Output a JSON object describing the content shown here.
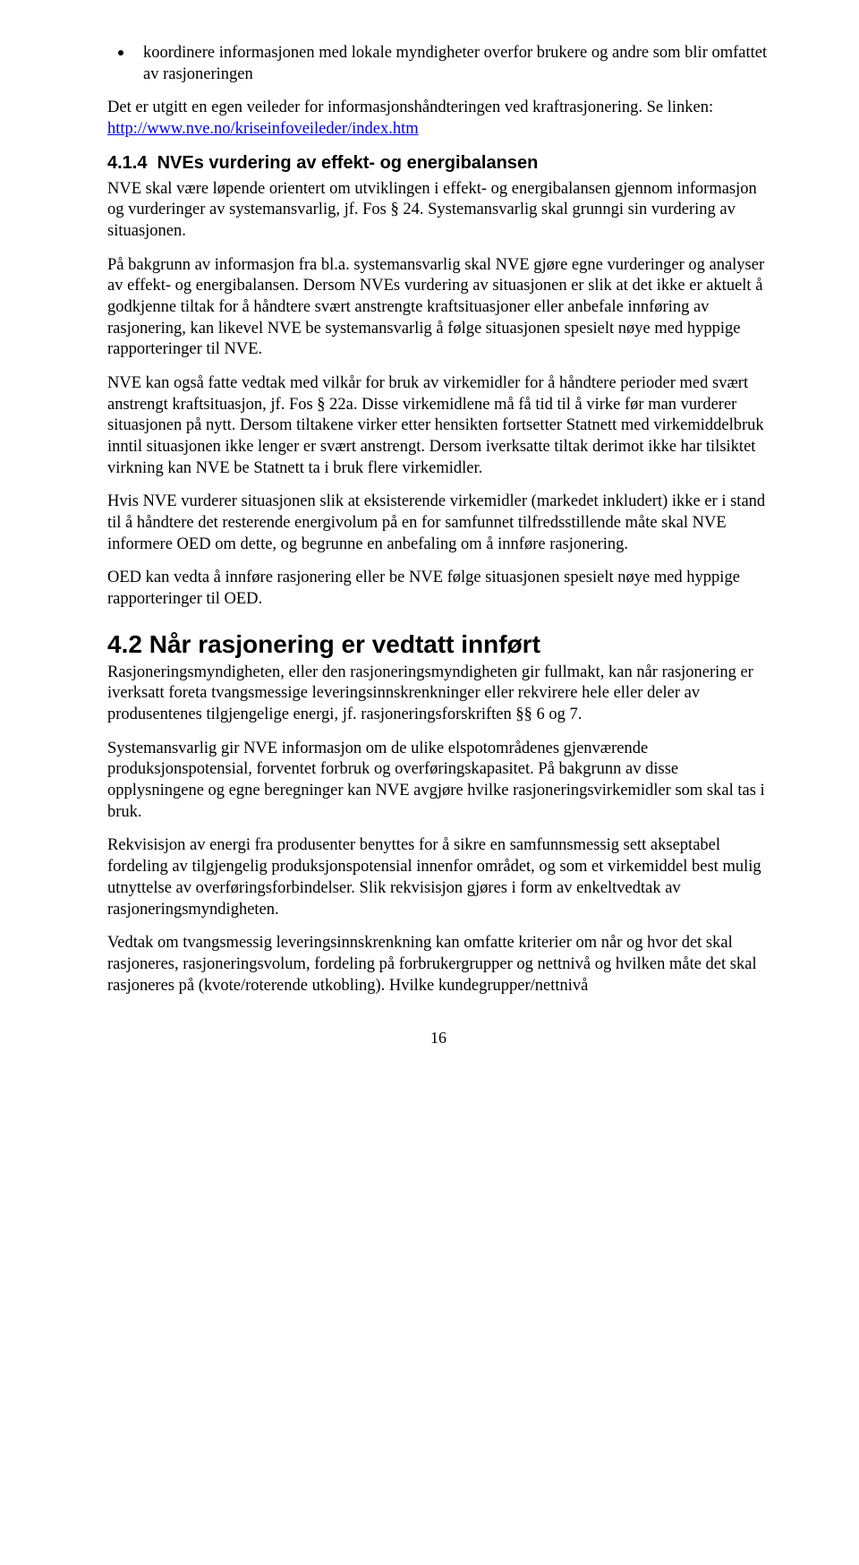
{
  "bullet1": "koordinere informasjonen med lokale myndigheter overfor brukere og andre som blir omfattet av rasjoneringen",
  "intro_before_link": "Det er utgitt en egen veileder for informasjonshåndteringen ved kraftrasjonering. Se linken: ",
  "link_text": "http://www.nve.no/kriseinfoveileder/index.htm",
  "h3_num": "4.1.4",
  "h3_title": "NVEs vurdering av effekt- og energibalansen",
  "p1": "NVE skal være løpende orientert om utviklingen i effekt- og energibalansen gjennom informasjon og vurderinger av systemansvarlig, jf. Fos § 24. Systemansvarlig skal grunngi sin vurdering av situasjonen.",
  "p2": "På bakgrunn av informasjon fra bl.a. systemansvarlig skal NVE gjøre egne vurderinger og analyser av effekt- og energibalansen. Dersom NVEs vurdering av situasjonen er slik at det ikke er aktuelt å godkjenne tiltak for å håndtere svært anstrengte kraftsituasjoner eller anbefale innføring av rasjonering, kan likevel NVE be systemansvarlig å følge situasjonen spesielt nøye med hyppige rapporteringer til NVE.",
  "p3": "NVE kan også fatte vedtak med vilkår for bruk av virkemidler for å håndtere perioder med svært anstrengt kraftsituasjon, jf. Fos § 22a. Disse virkemidlene må få tid til å virke før man vurderer situasjonen på nytt. Dersom tiltakene virker etter hensikten fortsetter Statnett med virkemiddelbruk inntil situasjonen ikke lenger er svært anstrengt. Dersom iverksatte tiltak derimot ikke har tilsiktet virkning kan NVE be Statnett ta i bruk flere virkemidler.",
  "p4": "Hvis NVE vurderer situasjonen slik at eksisterende virkemidler (markedet inkludert) ikke er i stand til å håndtere det resterende energivolum på en for samfunnet tilfredsstillende måte skal NVE informere OED om dette, og begrunne en anbefaling om å innføre rasjonering.",
  "p5": "OED kan vedta å innføre rasjonering eller be NVE følge situasjonen spesielt nøye med hyppige rapporteringer til OED.",
  "h2_num": "4.2",
  "h2_title": "Når rasjonering er vedtatt innført",
  "p6": "Rasjoneringsmyndigheten, eller den rasjoneringsmyndigheten gir fullmakt, kan når rasjonering er iverksatt foreta tvangsmessige leveringsinnskrenkninger eller rekvirere hele eller deler av produsentenes tilgjengelige energi, jf. rasjoneringsforskriften §§ 6 og 7.",
  "p7": "Systemansvarlig gir NVE informasjon om de ulike elspotområdenes gjenværende produksjonspotensial, forventet forbruk og overføringskapasitet. På bakgrunn av disse opplysningene og egne beregninger kan NVE avgjøre hvilke rasjoneringsvirkemidler som skal tas i bruk.",
  "p8": "Rekvisisjon av energi fra produsenter benyttes for å sikre en samfunnsmessig sett akseptabel fordeling av tilgjengelig produksjonspotensial innenfor området, og som et virkemiddel best mulig utnyttelse av overføringsforbindelser. Slik rekvisisjon gjøres i form av enkeltvedtak av rasjoneringsmyndigheten.",
  "p9": "Vedtak om tvangsmessig leveringsinnskrenkning kan omfatte kriterier om når og hvor det skal rasjoneres, rasjoneringsvolum, fordeling på forbrukergrupper og nettnivå og hvilken måte det skal rasjoneres på (kvote/roterende utkobling). Hvilke kundegrupper/nettnivå",
  "page_number": "16"
}
